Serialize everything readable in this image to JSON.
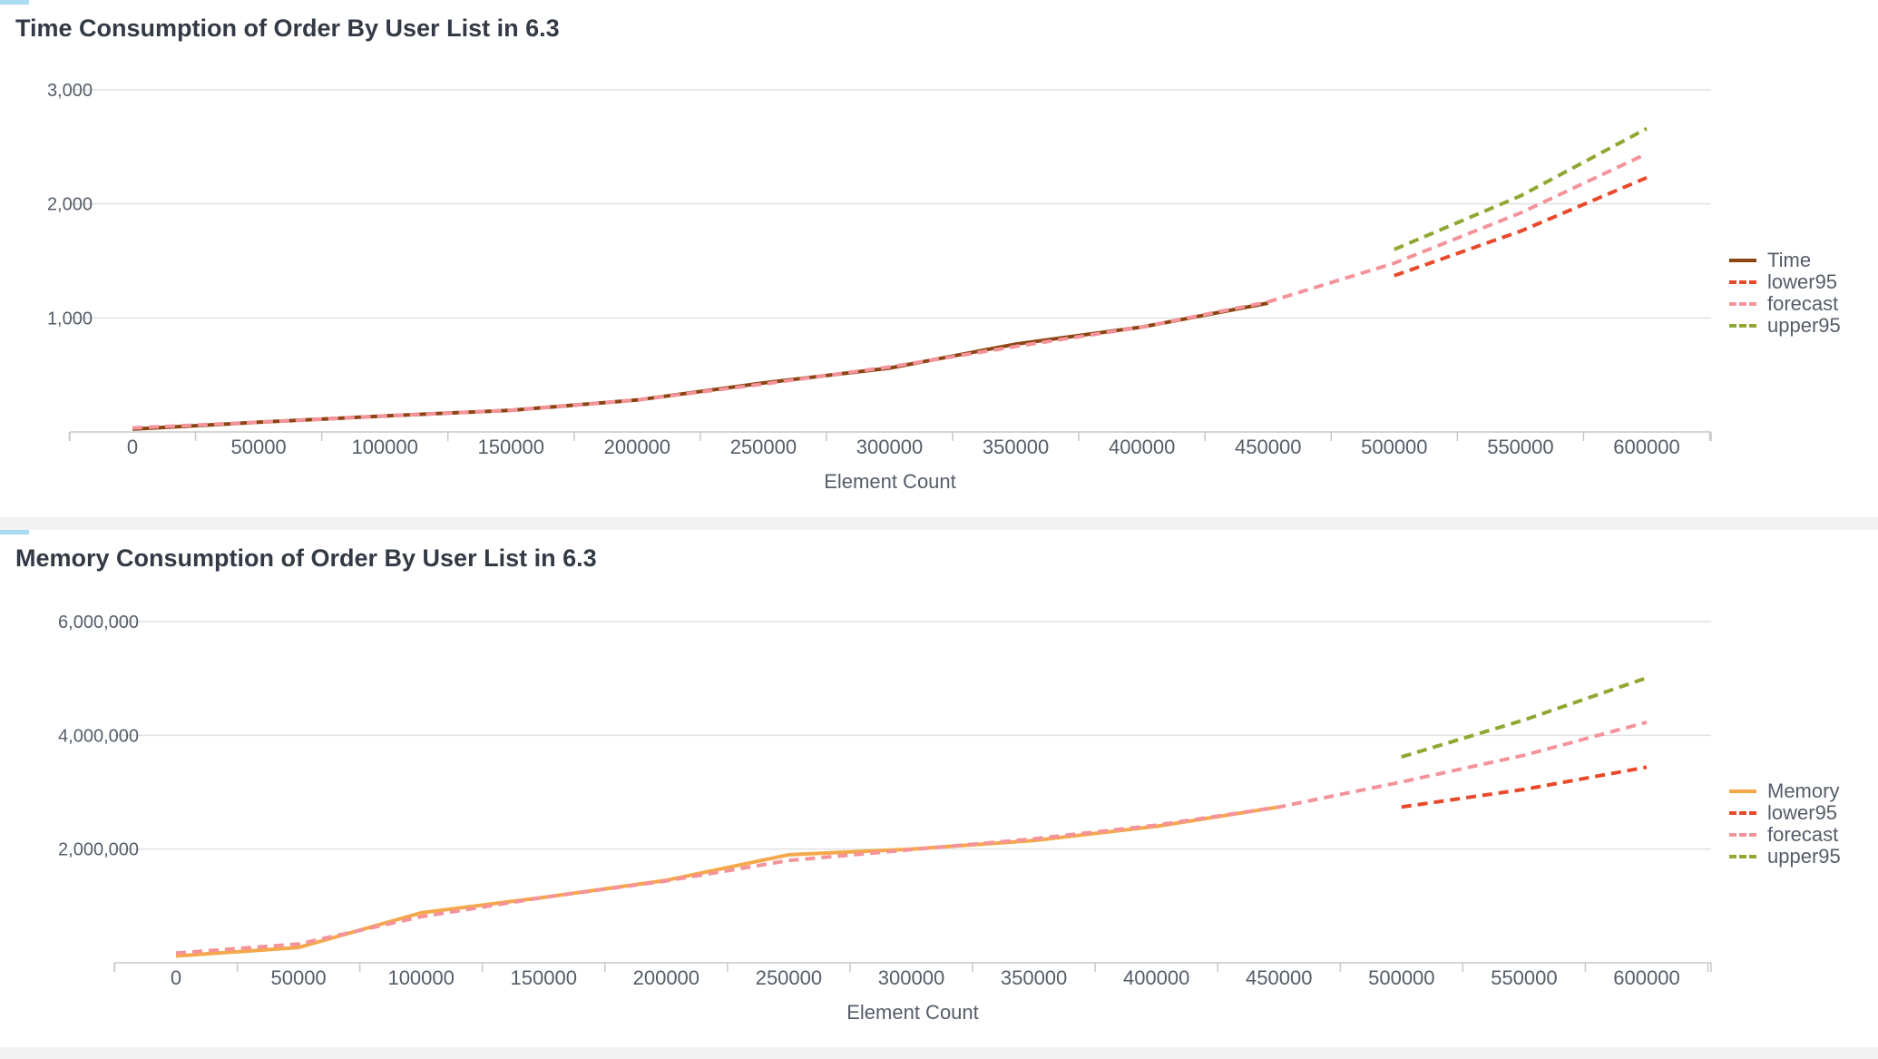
{
  "colors": {
    "time": "#8b4513",
    "memory": "#f5a849",
    "lower95": "#e8492a",
    "forecast": "#f4939a",
    "upper95": "#8fa832",
    "grid": "#e2e2e2",
    "axis": "#c8c8c8",
    "text": "#555d69"
  },
  "chart_data": [
    {
      "type": "line",
      "title": "Time Consumption of Order By User List in 6.3",
      "xlabel": "Element Count",
      "ylabel": "",
      "x": [
        0,
        50000,
        100000,
        150000,
        200000,
        250000,
        300000,
        350000,
        400000,
        450000,
        500000,
        550000,
        600000
      ],
      "x_tick_labels": [
        "0",
        "50000",
        "100000",
        "150000",
        "200000",
        "250000",
        "300000",
        "350000",
        "400000",
        "450000",
        "500000",
        "550000",
        "600000"
      ],
      "ylim": [
        0,
        3000
      ],
      "y_ticks": [
        1000,
        2000,
        3000
      ],
      "y_tick_labels": [
        "1,000",
        "2,000",
        "3,000"
      ],
      "grid": true,
      "legend_position": "right",
      "series": [
        {
          "name": "Time",
          "key": "time",
          "style": "solid",
          "values": [
            25,
            85,
            140,
            190,
            280,
            430,
            560,
            770,
            920,
            1130,
            null,
            null,
            null
          ]
        },
        {
          "name": "lower95",
          "key": "lower95",
          "style": "dashed",
          "values": [
            null,
            null,
            null,
            null,
            null,
            null,
            null,
            null,
            null,
            null,
            1370,
            1760,
            2230
          ]
        },
        {
          "name": "forecast",
          "key": "forecast",
          "style": "dashed",
          "values": [
            35,
            85,
            140,
            190,
            280,
            420,
            570,
            750,
            920,
            1140,
            1480,
            1920,
            2440
          ]
        },
        {
          "name": "upper95",
          "key": "upper95",
          "style": "dashed",
          "values": [
            null,
            null,
            null,
            null,
            null,
            null,
            null,
            null,
            null,
            null,
            1600,
            2070,
            2660
          ]
        }
      ]
    },
    {
      "type": "line",
      "title": "Memory Consumption of Order By User List in 6.3",
      "xlabel": "Element Count",
      "ylabel": "",
      "x": [
        0,
        50000,
        100000,
        150000,
        200000,
        250000,
        300000,
        350000,
        400000,
        450000,
        500000,
        550000,
        600000
      ],
      "x_tick_labels": [
        "0",
        "50000",
        "100000",
        "150000",
        "200000",
        "250000",
        "300000",
        "350000",
        "400000",
        "450000",
        "500000",
        "550000",
        "600000"
      ],
      "ylim": [
        0,
        6000000
      ],
      "y_ticks": [
        2000000,
        4000000,
        6000000
      ],
      "y_tick_labels": [
        "2,000,000",
        "4,000,000",
        "6,000,000"
      ],
      "grid": true,
      "legend_position": "right",
      "series": [
        {
          "name": "Memory",
          "key": "memory",
          "style": "solid",
          "values": [
            120000,
            270000,
            880000,
            1150000,
            1450000,
            1900000,
            2000000,
            2150000,
            2400000,
            2740000,
            null,
            null,
            null
          ]
        },
        {
          "name": "lower95",
          "key": "lower95",
          "style": "dashed",
          "values": [
            null,
            null,
            null,
            null,
            null,
            null,
            null,
            null,
            null,
            null,
            2740000,
            3050000,
            3440000
          ]
        },
        {
          "name": "forecast",
          "key": "forecast",
          "style": "dashed",
          "values": [
            170000,
            330000,
            810000,
            1150000,
            1440000,
            1800000,
            1990000,
            2180000,
            2420000,
            2740000,
            3180000,
            3650000,
            4230000
          ]
        },
        {
          "name": "upper95",
          "key": "upper95",
          "style": "dashed",
          "values": [
            null,
            null,
            null,
            null,
            null,
            null,
            null,
            null,
            null,
            null,
            3620000,
            4270000,
            5010000
          ]
        }
      ]
    }
  ]
}
